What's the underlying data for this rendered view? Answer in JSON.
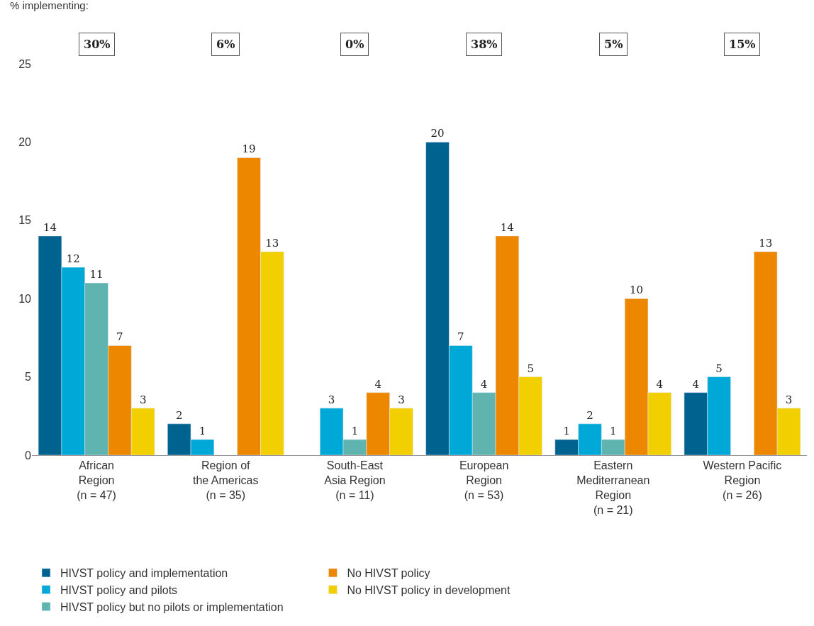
{
  "chart_data": {
    "type": "bar",
    "categories": [
      "African\nRegion\n(n = 47)",
      "Region of\nthe Americas\n(n = 35)",
      "South-East\nAsia Region\n(n = 11)",
      "European\nRegion\n(n = 53)",
      "Eastern\nMediterranean\nRegion\n(n = 21)",
      "Western Pacific\nRegion\n(n = 26)"
    ],
    "series": [
      {
        "name": "HIVST policy and implementation",
        "color": "#00628f",
        "values": [
          14,
          2,
          null,
          20,
          1,
          4
        ]
      },
      {
        "name": "HIVST policy and pilots",
        "color": "#00a8d8",
        "values": [
          12,
          1,
          3,
          7,
          2,
          5
        ]
      },
      {
        "name": "HIVST policy but no pilots or implementation",
        "color": "#5fb4b0",
        "values": [
          11,
          null,
          1,
          4,
          1,
          null
        ]
      },
      {
        "name": "No HIVST policy",
        "color": "#ee8700",
        "values": [
          7,
          19,
          4,
          14,
          10,
          13
        ]
      },
      {
        "name": "No HIVST policy in development",
        "color": "#f2cf00",
        "values": [
          3,
          13,
          3,
          5,
          4,
          3
        ]
      }
    ],
    "ylim": [
      0,
      25
    ],
    "yticks": [
      0,
      5,
      10,
      15,
      20,
      25
    ],
    "legend": "bottom",
    "data_labels": true,
    "annotations": [
      "% implementing:",
      "30%",
      "6%",
      "0%",
      "38%",
      "5%",
      "15%"
    ]
  }
}
